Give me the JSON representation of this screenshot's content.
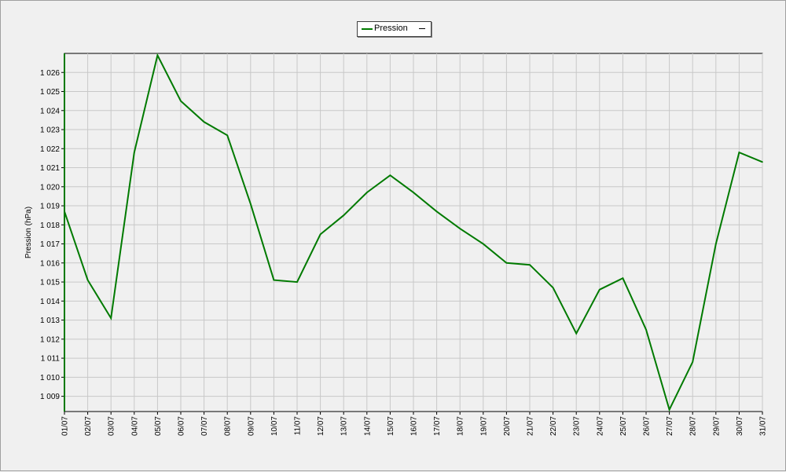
{
  "legend": {
    "series_name": "Pression",
    "trailing_mark": "—"
  },
  "colors": {
    "series": "#007a00",
    "grid": "#c8c8c8",
    "plot_bg": "#f0f0f0"
  },
  "chart_data": {
    "type": "line",
    "title": "",
    "xlabel": "",
    "ylabel": "Pression (hPa)",
    "ylim": [
      1008.2,
      1027.0
    ],
    "y_ticks": [
      1009,
      1010,
      1011,
      1012,
      1013,
      1014,
      1015,
      1016,
      1017,
      1018,
      1019,
      1020,
      1021,
      1022,
      1023,
      1024,
      1025,
      1026
    ],
    "y_tick_labels": [
      "1 009",
      "1 010",
      "1 011",
      "1 012",
      "1 013",
      "1 014",
      "1 015",
      "1 016",
      "1 017",
      "1 018",
      "1 019",
      "1 020",
      "1 021",
      "1 022",
      "1 023",
      "1 024",
      "1 025",
      "1 026"
    ],
    "categories": [
      "01/07",
      "02/07",
      "03/07",
      "04/07",
      "05/07",
      "06/07",
      "07/07",
      "08/07",
      "09/07",
      "10/07",
      "11/07",
      "12/07",
      "13/07",
      "14/07",
      "15/07",
      "16/07",
      "17/07",
      "18/07",
      "19/07",
      "20/07",
      "21/07",
      "22/07",
      "23/07",
      "24/07",
      "25/07",
      "26/07",
      "27/07",
      "28/07",
      "29/07",
      "30/07",
      "31/07"
    ],
    "grid": true,
    "legend_position": "top-center",
    "series": [
      {
        "name": "Pression",
        "values": [
          1018.7,
          1015.1,
          1013.1,
          1021.8,
          1026.9,
          1024.5,
          1023.4,
          1022.7,
          1019.1,
          1015.1,
          1015.0,
          1017.5,
          1018.5,
          1019.7,
          1020.6,
          1019.7,
          1018.7,
          1017.8,
          1017.0,
          1016.0,
          1015.9,
          1014.7,
          1012.3,
          1014.6,
          1015.2,
          1012.5,
          1008.3,
          1010.8,
          1017.0,
          1021.8,
          1021.3
        ]
      }
    ]
  }
}
